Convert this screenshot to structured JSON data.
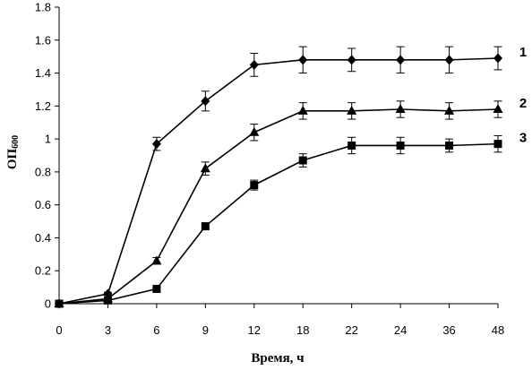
{
  "chart_data": {
    "type": "line",
    "xlabel": "Время, ч",
    "ylabel_main": "ОП",
    "ylabel_sub": "600",
    "categories": [
      "0",
      "3",
      "6",
      "9",
      "12",
      "18",
      "22",
      "24",
      "36",
      "48"
    ],
    "ylim": [
      0,
      1.8
    ],
    "yticks": [
      "0",
      "0.2",
      "0.4",
      "0.6",
      "0.8",
      "1",
      "1.2",
      "1.4",
      "1.6",
      "1.8"
    ],
    "grid": false,
    "series": [
      {
        "name": "1",
        "marker": "diamond",
        "values": [
          0,
          0.06,
          0.97,
          1.23,
          1.45,
          1.48,
          1.48,
          1.48,
          1.48,
          1.49
        ],
        "errors": [
          0,
          0.01,
          0.04,
          0.06,
          0.07,
          0.08,
          0.07,
          0.08,
          0.08,
          0.07
        ]
      },
      {
        "name": "2",
        "marker": "triangle",
        "values": [
          0,
          0.03,
          0.26,
          0.82,
          1.04,
          1.17,
          1.17,
          1.18,
          1.17,
          1.18
        ],
        "errors": [
          0,
          0.01,
          0.02,
          0.04,
          0.05,
          0.05,
          0.05,
          0.05,
          0.05,
          0.05
        ]
      },
      {
        "name": "3",
        "marker": "square",
        "values": [
          0,
          0.02,
          0.09,
          0.47,
          0.72,
          0.87,
          0.96,
          0.96,
          0.96,
          0.97
        ],
        "errors": [
          0,
          0.005,
          0.01,
          0.02,
          0.03,
          0.04,
          0.05,
          0.05,
          0.04,
          0.05
        ]
      }
    ]
  }
}
